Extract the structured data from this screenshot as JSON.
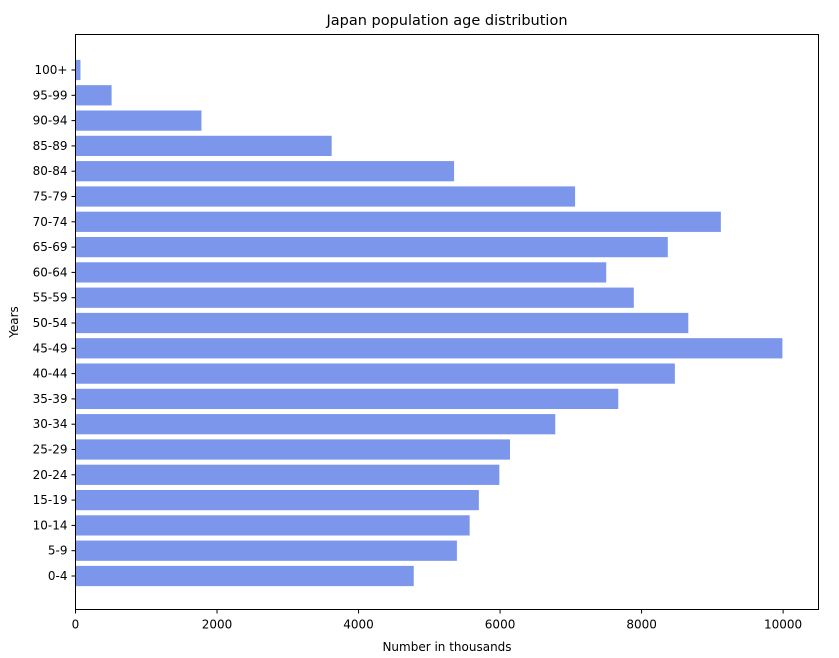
{
  "chart_data": {
    "type": "bar",
    "orientation": "horizontal",
    "title": "Japan population age distribution",
    "xlabel": "Number in thousands",
    "ylabel": "Years",
    "xlim": [
      0,
      10500
    ],
    "xticks": [
      0,
      2000,
      4000,
      6000,
      8000,
      10000
    ],
    "categories": [
      "0-4",
      "5-9",
      "10-14",
      "15-19",
      "20-24",
      "25-29",
      "30-34",
      "35-39",
      "40-44",
      "45-49",
      "50-54",
      "55-59",
      "60-64",
      "65-69",
      "70-74",
      "75-79",
      "80-84",
      "85-89",
      "90-94",
      "95-99",
      "100+"
    ],
    "values": [
      4780,
      5390,
      5570,
      5700,
      5990,
      6140,
      6780,
      7670,
      8470,
      9990,
      8660,
      7890,
      7500,
      8370,
      9120,
      7060,
      5350,
      3620,
      1780,
      510,
      70
    ],
    "bar_color": "#7b96ea",
    "grid": false,
    "legend": "none"
  }
}
